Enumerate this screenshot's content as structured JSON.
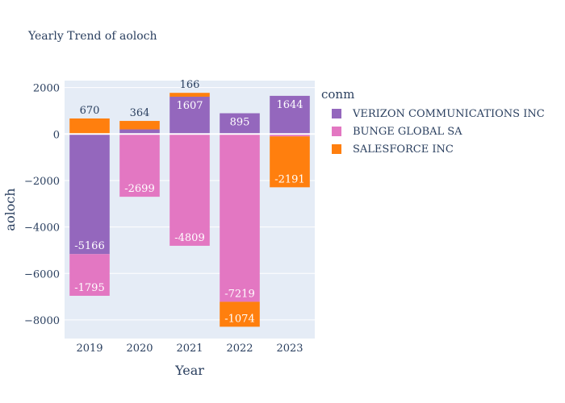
{
  "chart_data": {
    "type": "bar",
    "barmode": "relative",
    "title": "Yearly Trend of aoloch",
    "xlabel": "Year",
    "ylabel": "aoloch",
    "categories": [
      "2019",
      "2020",
      "2021",
      "2022",
      "2023"
    ],
    "ylim": [
      -8800,
      2300
    ],
    "yticks": [
      2000,
      0,
      -2000,
      -4000,
      -6000,
      -8000
    ],
    "ytick_labels": [
      "2000",
      "0",
      "−2000",
      "−4000",
      "−6000",
      "−8000"
    ],
    "grid": true,
    "legend_title": "conm",
    "legend_position": "right",
    "series": [
      {
        "name": "VERIZON COMMUNICATIONS INC",
        "color": "#9467bd",
        "values": [
          -5166,
          200,
          1607,
          895,
          1644
        ],
        "labels": [
          "-5166",
          "",
          "1607",
          "895",
          "1644"
        ]
      },
      {
        "name": "BUNGE GLOBAL SA",
        "color": "#e377c2",
        "values": [
          -1795,
          -2699,
          -4809,
          -7219,
          -100
        ],
        "labels": [
          "-1795",
          "-2699",
          "-4809",
          "-7219",
          ""
        ]
      },
      {
        "name": "SALESFORCE INC",
        "color": "#ff7f0e",
        "values": [
          670,
          364,
          166,
          -1074,
          -2191
        ],
        "labels": [
          "670",
          "364",
          "166",
          "-1074",
          "-2191"
        ]
      }
    ]
  }
}
